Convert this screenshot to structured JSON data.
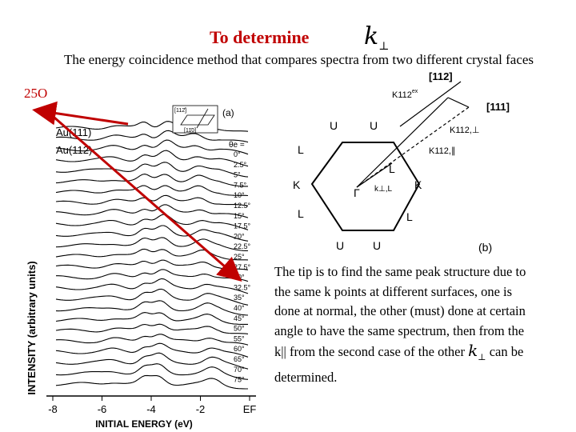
{
  "slide": {
    "title": "To determine",
    "k_symbol": "k",
    "k_subscript": "⊥",
    "subtitle": "The energy coincidence method that compares spectra from two different crystal faces",
    "angle_label": "25O",
    "note_part1": "The tip is to find the same peak structure due to the same k points at different surfaces, one is done at normal, the other (must) done at certain angle to have the same spectrum, then from the k|| from the second case  of the other",
    "note_part2": "can be determined."
  },
  "figure_a": {
    "ylabel": "INTENSITY (arbitrary units)",
    "xlabel": "INITIAL ENERGY (eV)",
    "x_ticks": [
      "-8",
      "-6",
      "-4",
      "-2",
      "EF"
    ],
    "legend_111": "Au(111)",
    "legend_112": "Au(112)",
    "panel_label": "(a)",
    "theta_header": "θe =",
    "theta_values": [
      "0°",
      "2.5°",
      "5°",
      "7.5°",
      "10°",
      "12.5°",
      "15°",
      "17.5°",
      "20°",
      "22.5°",
      "25°",
      "27.5°",
      "30°",
      "32.5°",
      "35°",
      "40°",
      "45°",
      "50°",
      "55°",
      "60°",
      "65°",
      "70°",
      "75°"
    ],
    "inset_labels": [
      "[112̄]",
      "[11̄0]"
    ]
  },
  "figure_b": {
    "panel_label": "(b)",
    "points": [
      "U",
      "U",
      "U",
      "U",
      "L",
      "L",
      "K",
      "K",
      "Γ",
      "L",
      "L"
    ],
    "label_k_perp": "k⊥,L",
    "label_111": "[111]",
    "label_112": "[112]",
    "label_kex112": "K112",
    "label_kex112_perp": "K112,⊥",
    "label_kex112_par": "K112,∥",
    "ex_superscript": "ex"
  },
  "colors": {
    "title_red": "#c00000",
    "arrow_red": "#c00000",
    "arrow_fill": "#e07050"
  }
}
